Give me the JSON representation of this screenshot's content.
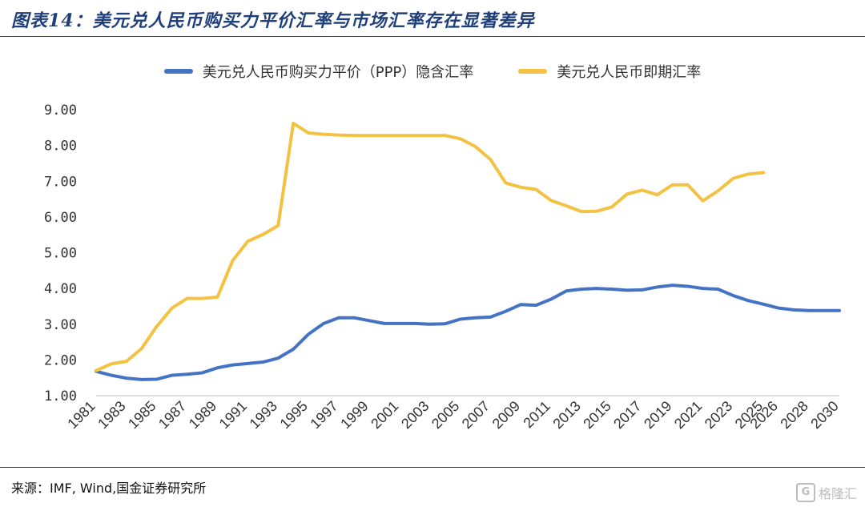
{
  "header": {
    "title": "图表14：美元兑人民币购买力平价汇率与市场汇率存在显著差异"
  },
  "footer": {
    "source": "来源：IMF, Wind,国金证券研究所",
    "watermark": "格隆汇",
    "watermark_icon": "G"
  },
  "colors": {
    "ppp": "#4472c4",
    "spot": "#f4c242",
    "rule": "#1f3f7a",
    "axis": "#bfbfbf"
  },
  "chart_data": {
    "type": "line",
    "x": [
      1981,
      1982,
      1983,
      1984,
      1985,
      1986,
      1987,
      1988,
      1989,
      1990,
      1991,
      1992,
      1993,
      1994,
      1995,
      1996,
      1997,
      1998,
      1999,
      2000,
      2001,
      2002,
      2003,
      2004,
      2005,
      2006,
      2007,
      2008,
      2009,
      2010,
      2011,
      2012,
      2013,
      2014,
      2015,
      2016,
      2017,
      2018,
      2019,
      2020,
      2021,
      2022,
      2023,
      2024,
      2025,
      2026,
      2027,
      2028,
      2029,
      2030
    ],
    "x_tick_labels": [
      "1981",
      "1983",
      "1985",
      "1987",
      "1989",
      "1991",
      "1993",
      "1995",
      "1997",
      "1999",
      "2001",
      "2003",
      "2005",
      "2007",
      "2009",
      "2011",
      "2013",
      "2015",
      "2017",
      "2019",
      "2021",
      "2023",
      "2025",
      "2026",
      "2028",
      "2030"
    ],
    "x_tick_years": [
      1981,
      1983,
      1985,
      1987,
      1989,
      1991,
      1993,
      1995,
      1997,
      1999,
      2001,
      2003,
      2005,
      2007,
      2009,
      2011,
      2013,
      2015,
      2017,
      2019,
      2021,
      2023,
      2025,
      2026,
      2028,
      2030
    ],
    "y_ticks": [
      "1.00",
      "2.00",
      "3.00",
      "4.00",
      "5.00",
      "6.00",
      "7.00",
      "8.00",
      "9.00"
    ],
    "ylim": [
      1,
      9
    ],
    "grid": false,
    "legend_position": "top-center",
    "series": [
      {
        "name": "美元兑人民币购买力平价（PPP）隐含汇率",
        "values": [
          1.68,
          1.57,
          1.49,
          1.45,
          1.46,
          1.57,
          1.6,
          1.64,
          1.78,
          1.86,
          1.9,
          1.94,
          2.05,
          2.3,
          2.72,
          3.02,
          3.18,
          3.18,
          3.1,
          3.02,
          3.02,
          3.02,
          3.0,
          3.01,
          3.14,
          3.18,
          3.2,
          3.36,
          3.55,
          3.53,
          3.7,
          3.93,
          3.98,
          4.0,
          3.98,
          3.95,
          3.96,
          4.04,
          4.09,
          4.06,
          4.0,
          3.98,
          3.8,
          3.66,
          3.56,
          3.45,
          3.4,
          3.38,
          3.38,
          3.38
        ]
      },
      {
        "name": "美元兑人民币即期汇率",
        "values": [
          1.7,
          1.89,
          1.96,
          2.32,
          2.94,
          3.45,
          3.72,
          3.72,
          3.76,
          4.78,
          5.32,
          5.51,
          5.76,
          8.62,
          8.35,
          8.31,
          8.29,
          8.28,
          8.28,
          8.28,
          8.28,
          8.28,
          8.28,
          8.28,
          8.19,
          7.97,
          7.61,
          6.95,
          6.83,
          6.77,
          6.46,
          6.31,
          6.15,
          6.16,
          6.28,
          6.64,
          6.75,
          6.62,
          6.9,
          6.9,
          6.45,
          6.73,
          7.08,
          7.2,
          7.24,
          null,
          null,
          null,
          null,
          null
        ]
      }
    ]
  }
}
